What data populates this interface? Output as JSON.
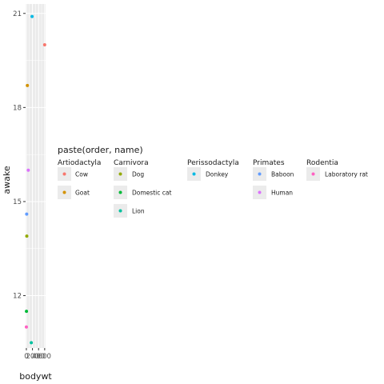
{
  "chart_data": {
    "type": "scatter",
    "xlabel": "bodywt",
    "ylabel": "awake",
    "x_tick_labels": [
      "0",
      "200",
      "400",
      "600"
    ],
    "x_ticks": [
      0,
      200,
      400,
      600
    ],
    "xlim": [
      -25,
      630
    ],
    "y_ticks": [
      12,
      15,
      18,
      21
    ],
    "y_tick_labels": [
      "12",
      "15",
      "18",
      "21"
    ],
    "ylim": [
      10.33,
      21.3
    ],
    "grid": true,
    "legend": {
      "title": "paste(order, name)",
      "placement": "center",
      "groups": [
        {
          "name": "Artiodactyla",
          "items": [
            {
              "label": "Cow",
              "color": "#F8766D"
            },
            {
              "label": "Goat",
              "color": "#D39200"
            }
          ]
        },
        {
          "name": "Carnivora",
          "items": [
            {
              "label": "Dog",
              "color": "#93AA00"
            },
            {
              "label": "Domestic cat",
              "color": "#00BA38"
            },
            {
              "label": "Lion",
              "color": "#00C19F"
            }
          ]
        },
        {
          "name": "Perissodactyla",
          "items": [
            {
              "label": "Donkey",
              "color": "#00B9E3"
            }
          ]
        },
        {
          "name": "Primates",
          "items": [
            {
              "label": "Baboon",
              "color": "#619CFF"
            },
            {
              "label": "Human",
              "color": "#DB72FB"
            }
          ]
        },
        {
          "name": "Rodentia",
          "items": [
            {
              "label": "Laboratory rat",
              "color": "#FF61C3"
            }
          ]
        }
      ]
    },
    "points": [
      {
        "name": "Cow",
        "x": 600,
        "y": 20.0,
        "color": "#F8766D"
      },
      {
        "name": "Goat",
        "x": 33.5,
        "y": 18.7,
        "color": "#D39200"
      },
      {
        "name": "Dog",
        "x": 14,
        "y": 13.9,
        "color": "#93AA00"
      },
      {
        "name": "Domestic cat",
        "x": 3.3,
        "y": 11.5,
        "color": "#00BA38"
      },
      {
        "name": "Lion",
        "x": 161.5,
        "y": 10.5,
        "color": "#00C19F"
      },
      {
        "name": "Donkey",
        "x": 187,
        "y": 20.9,
        "color": "#00B9E3"
      },
      {
        "name": "Baboon",
        "x": 10.55,
        "y": 14.6,
        "color": "#619CFF"
      },
      {
        "name": "Human",
        "x": 62,
        "y": 16.0,
        "color": "#DB72FB"
      },
      {
        "name": "Laboratory rat",
        "x": 0.32,
        "y": 11.0,
        "color": "#FF61C3"
      }
    ]
  }
}
